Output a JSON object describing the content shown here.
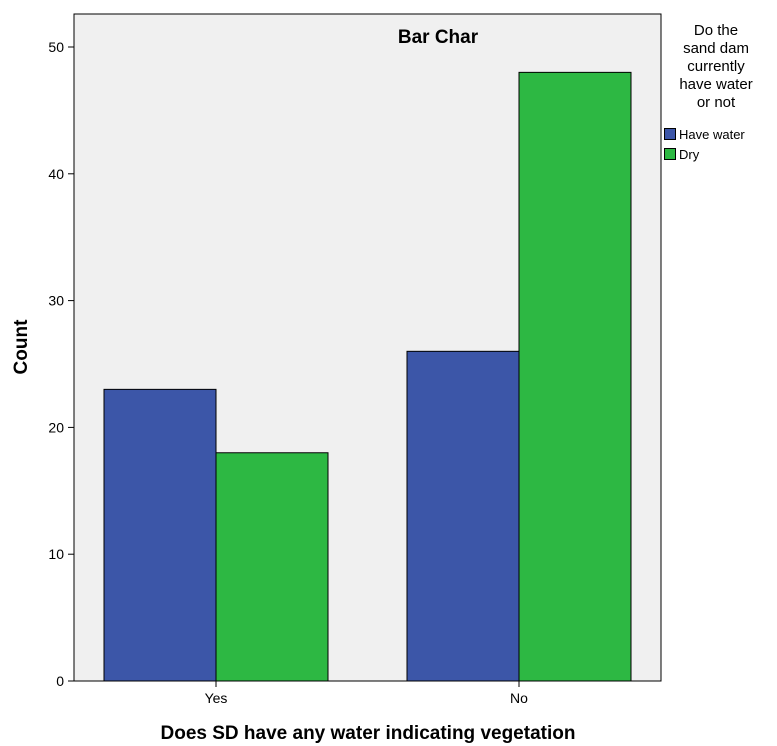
{
  "chart_data": {
    "type": "bar",
    "title": "Bar Char",
    "xlabel": "Does SD have any water indicating vegetation",
    "ylabel": "Count",
    "categories": [
      "Yes",
      "No"
    ],
    "series": [
      {
        "name": "Have water",
        "values": [
          23,
          26
        ],
        "color": "#3c56a8"
      },
      {
        "name": "Dry",
        "values": [
          18,
          48
        ],
        "color": "#2db843"
      }
    ],
    "ylim": [
      0,
      50
    ],
    "yticks": [
      0,
      10,
      20,
      30,
      40,
      50
    ],
    "legend_title_lines": [
      "Do the",
      "sand dam",
      "currently",
      "have water",
      "or not"
    ],
    "legend_position": "right",
    "plot_background": "#f0f0f0",
    "grid": false
  }
}
